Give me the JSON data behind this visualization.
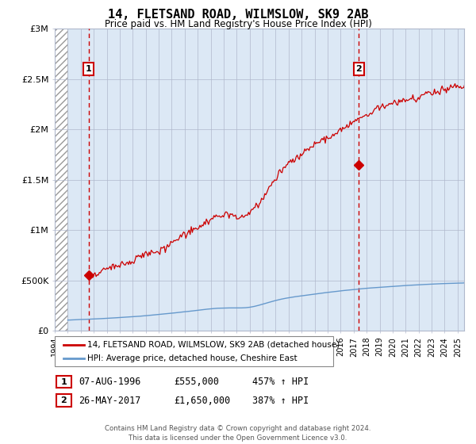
{
  "title": "14, FLETSAND ROAD, WILMSLOW, SK9 2AB",
  "subtitle": "Price paid vs. HM Land Registry's House Price Index (HPI)",
  "legend_line1": "14, FLETSAND ROAD, WILMSLOW, SK9 2AB (detached house)",
  "legend_line2": "HPI: Average price, detached house, Cheshire East",
  "footer": "Contains HM Land Registry data © Crown copyright and database right 2024.\nThis data is licensed under the Open Government Licence v3.0.",
  "sale1_date": "07-AUG-1996",
  "sale1_price": 555000,
  "sale1_label": "457% ↑ HPI",
  "sale2_date": "26-MAY-2017",
  "sale2_price": 1650000,
  "sale2_label": "387% ↑ HPI",
  "sale1_x": 1996.6,
  "sale2_x": 2017.4,
  "ylim": [
    0,
    3000000
  ],
  "xlim": [
    1994.0,
    2025.5
  ],
  "hatch_end_x": 1995.0,
  "red_color": "#cc0000",
  "blue_color": "#6699cc",
  "bg_color": "#dce8f5",
  "grid_color": "#b0b8cc"
}
